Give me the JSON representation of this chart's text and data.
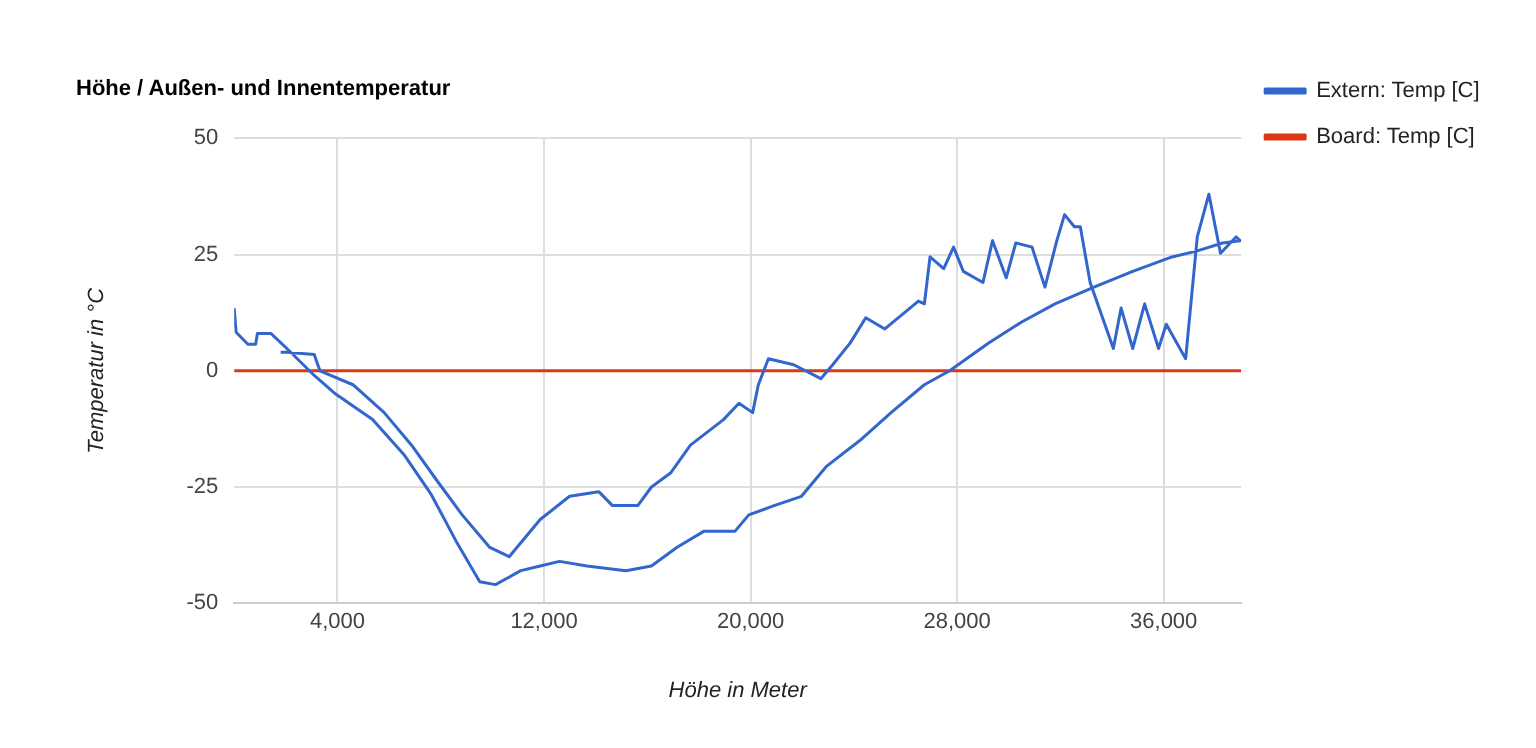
{
  "chart_data": {
    "type": "line",
    "title": "Höhe / Außen- und Innentemperatur",
    "xlabel": "Höhe in Meter",
    "ylabel": "Temperatur in °C",
    "xlim": [
      0,
      39000
    ],
    "ylim": [
      -50,
      50
    ],
    "xticks": [
      {
        "value": 4000,
        "label": "4,000"
      },
      {
        "value": 12000,
        "label": "12,000"
      },
      {
        "value": 20000,
        "label": "20,000"
      },
      {
        "value": 28000,
        "label": "28,000"
      },
      {
        "value": 36000,
        "label": "36,000"
      }
    ],
    "yticks": [
      -50,
      -25,
      0,
      25,
      50
    ],
    "grid": true,
    "legend": "right",
    "marker": "none",
    "line_style": "solid",
    "series": [
      {
        "name": "Extern: Temp [C]",
        "color": "#3366cc",
        "x": [
          0,
          75,
          530,
          830,
          900,
          1430,
          2040,
          3100,
          3930,
          5360,
          6570,
          7630,
          8600,
          9510,
          10120,
          11100,
          11850,
          12600,
          13660,
          15170,
          16160,
          17140,
          18200,
          19400,
          19930,
          20910,
          21970,
          22950,
          24230,
          25440,
          26730,
          27710,
          29220,
          30500,
          31790,
          33300,
          34800,
          36320,
          37300,
          38280,
          38960,
          38800,
          38200,
          37750,
          37300,
          36850,
          36100,
          35800,
          35260,
          34800,
          34350,
          34050,
          33150,
          32770,
          32540,
          32160,
          31860,
          31400,
          30900,
          30270,
          29900,
          29370,
          29000,
          28240,
          27860,
          27480,
          26950,
          26730,
          26500,
          25200,
          24460,
          23860,
          23180,
          22720,
          21670,
          20690,
          20300,
          20080,
          19550,
          18950,
          17670,
          16900,
          16160,
          15630,
          14650,
          14120,
          12990,
          11850,
          10650,
          9900,
          8830,
          7850,
          6870,
          5810,
          4600,
          3320,
          3100,
          2040,
          1800
        ],
        "values": [
          13.5,
          8.3,
          5.7,
          5.7,
          8,
          8,
          4.8,
          -1,
          -5,
          -10.5,
          -18,
          -26.6,
          -36.7,
          -45.4,
          -46,
          -43,
          -42,
          -41,
          -42,
          -43,
          -42,
          -38,
          -34.5,
          -34.5,
          -31,
          -29,
          -27,
          -20.5,
          -15,
          -9,
          -3,
          0,
          6,
          10.5,
          14.4,
          18,
          21.4,
          24.5,
          25.8,
          27.5,
          28,
          28.8,
          25.3,
          38,
          28.8,
          2.6,
          10,
          4.8,
          14.4,
          4.8,
          13.5,
          4.8,
          19,
          31,
          31,
          33.6,
          28,
          18,
          26.6,
          27.5,
          20,
          28,
          19,
          21.4,
          26.6,
          22,
          24.5,
          14.4,
          15,
          9,
          11.4,
          6,
          1.3,
          -1.7,
          1.3,
          2.6,
          -3,
          -9,
          -7,
          -10.5,
          -16,
          -22,
          -25,
          -29,
          -29,
          -26,
          -27,
          -32,
          -40,
          -38,
          -31,
          -23.6,
          -16,
          -9,
          -3,
          0,
          3.5,
          4,
          4
        ]
      },
      {
        "name": "Board: Temp [C]",
        "color": "#dc3912",
        "x": [
          0,
          39000
        ],
        "values": [
          0,
          0
        ]
      }
    ]
  }
}
